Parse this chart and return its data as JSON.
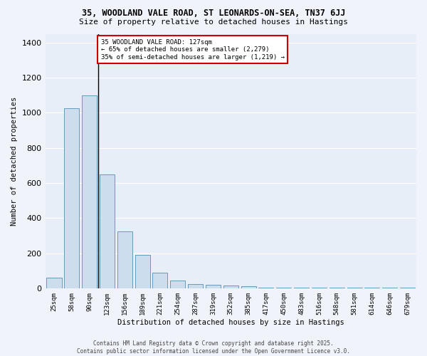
{
  "title_line1": "35, WOODLAND VALE ROAD, ST LEONARDS-ON-SEA, TN37 6JJ",
  "title_line2": "Size of property relative to detached houses in Hastings",
  "xlabel": "Distribution of detached houses by size in Hastings",
  "ylabel": "Number of detached properties",
  "categories": [
    "25sqm",
    "58sqm",
    "90sqm",
    "123sqm",
    "156sqm",
    "189sqm",
    "221sqm",
    "254sqm",
    "287sqm",
    "319sqm",
    "352sqm",
    "385sqm",
    "417sqm",
    "450sqm",
    "483sqm",
    "516sqm",
    "548sqm",
    "581sqm",
    "614sqm",
    "646sqm",
    "679sqm"
  ],
  "values": [
    60,
    1025,
    1100,
    650,
    325,
    190,
    90,
    45,
    25,
    20,
    15,
    10,
    5,
    5,
    5,
    3,
    3,
    2,
    2,
    2,
    2
  ],
  "bar_color": "#ccdded",
  "bar_edge_color": "#6699bb",
  "annotation_text": "35 WOODLAND VALE ROAD: 127sqm\n← 65% of detached houses are smaller (2,279)\n35% of semi-detached houses are larger (1,219) →",
  "annotation_box_color": "#ffffff",
  "annotation_box_edge": "#cc0000",
  "marker_color": "#000000",
  "ylim": [
    0,
    1450
  ],
  "background_color": "#e8eef8",
  "grid_color": "#ffffff",
  "footer_line1": "Contains HM Land Registry data © Crown copyright and database right 2025.",
  "footer_line2": "Contains public sector information licensed under the Open Government Licence v3.0."
}
